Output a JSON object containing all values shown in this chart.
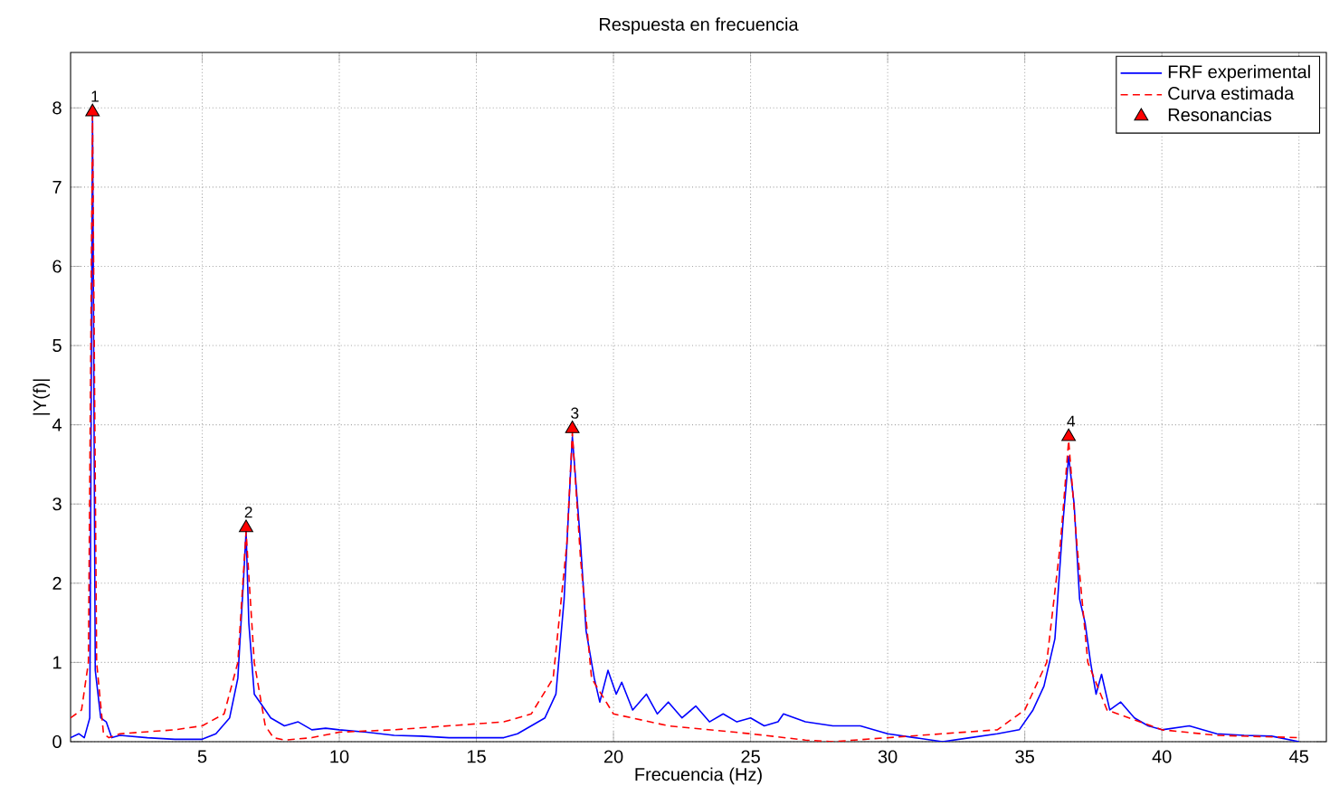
{
  "chart_data": {
    "type": "line",
    "title": "Respuesta en frecuencia",
    "xlabel": "Frecuencia (Hz)",
    "ylabel": "|Y(f)|",
    "xlim": [
      0.2,
      46
    ],
    "ylim": [
      0,
      8.7
    ],
    "xticks": [
      5,
      10,
      15,
      20,
      25,
      30,
      35,
      40,
      45
    ],
    "yticks": [
      0,
      1,
      2,
      3,
      4,
      5,
      6,
      7,
      8
    ],
    "grid": true,
    "legend": "top right",
    "series": [
      {
        "name": "FRF experimental",
        "color": "#0000ff",
        "line_style": "solid",
        "marker": "none",
        "x": [
          0.2,
          0.5,
          0.7,
          0.9,
          1.0,
          1.1,
          1.3,
          1.5,
          1.7,
          2,
          3,
          4,
          5,
          5.5,
          6,
          6.3,
          6.5,
          6.6,
          6.7,
          6.9,
          7.2,
          7.5,
          8,
          8.5,
          9,
          9.5,
          10,
          11,
          12,
          13,
          14,
          15,
          16,
          16.5,
          17,
          17.5,
          17.9,
          18.2,
          18.5,
          18.8,
          19.0,
          19.3,
          19.5,
          19.8,
          20.1,
          20.3,
          20.7,
          21.2,
          21.6,
          22,
          22.5,
          23,
          23.5,
          24,
          24.5,
          25,
          25.5,
          26,
          26.2,
          27,
          28,
          29,
          30,
          31,
          32,
          33,
          34,
          34.8,
          35.3,
          35.7,
          36.1,
          36.4,
          36.6,
          36.8,
          37.0,
          37.2,
          37.4,
          37.6,
          37.8,
          38.1,
          38.5,
          39,
          39.5,
          40,
          41,
          42,
          43,
          44,
          45
        ],
        "values": [
          0.05,
          0.1,
          0.05,
          0.3,
          7.9,
          0.9,
          0.3,
          0.25,
          0.05,
          0.08,
          0.05,
          0.03,
          0.03,
          0.1,
          0.3,
          0.8,
          2.0,
          2.65,
          1.5,
          0.6,
          0.45,
          0.3,
          0.2,
          0.25,
          0.15,
          0.17,
          0.15,
          0.12,
          0.08,
          0.07,
          0.05,
          0.05,
          0.05,
          0.1,
          0.2,
          0.3,
          0.6,
          1.8,
          3.85,
          2.5,
          1.4,
          0.8,
          0.5,
          0.9,
          0.6,
          0.75,
          0.4,
          0.6,
          0.35,
          0.5,
          0.3,
          0.45,
          0.25,
          0.35,
          0.25,
          0.3,
          0.2,
          0.25,
          0.35,
          0.25,
          0.2,
          0.2,
          0.1,
          0.05,
          0.0,
          0.05,
          0.1,
          0.15,
          0.4,
          0.7,
          1.3,
          2.8,
          3.6,
          3.0,
          1.8,
          1.5,
          1.0,
          0.6,
          0.85,
          0.4,
          0.5,
          0.3,
          0.2,
          0.15,
          0.2,
          0.1,
          0.08,
          0.07,
          0.0
        ]
      },
      {
        "name": "Curva estimada",
        "color": "#ff0000",
        "line_style": "dashed",
        "marker": "none",
        "x": [
          0.2,
          0.6,
          0.85,
          1.0,
          1.15,
          1.4,
          1.6,
          2,
          4,
          5,
          5.8,
          6.3,
          6.6,
          6.9,
          7.3,
          7.6,
          8,
          9,
          10,
          12,
          14,
          16,
          17,
          17.8,
          18.3,
          18.5,
          18.8,
          19.2,
          20,
          22,
          25,
          27,
          28,
          30,
          32,
          34,
          35,
          35.8,
          36.3,
          36.6,
          36.9,
          37.3,
          38,
          40,
          42,
          45
        ],
        "values": [
          0.3,
          0.4,
          1.0,
          7.9,
          1.0,
          0.1,
          0.05,
          0.1,
          0.15,
          0.2,
          0.35,
          1.0,
          2.65,
          1.0,
          0.2,
          0.05,
          0.02,
          0.05,
          0.12,
          0.15,
          0.2,
          0.25,
          0.35,
          0.8,
          2.5,
          3.9,
          2.3,
          0.8,
          0.35,
          0.2,
          0.1,
          0.02,
          0.0,
          0.05,
          0.1,
          0.15,
          0.4,
          1.0,
          2.5,
          3.8,
          2.5,
          1.0,
          0.4,
          0.15,
          0.08,
          0.05
        ]
      },
      {
        "name": "Resonancias",
        "type": "scatter",
        "color": "#ff0000",
        "marker": "triangle",
        "x": [
          1.0,
          6.6,
          18.5,
          36.6
        ],
        "values": [
          7.95,
          2.7,
          3.95,
          3.85
        ]
      }
    ],
    "annotations": [
      {
        "text": "1",
        "x": 1.0,
        "y": 7.95
      },
      {
        "text": "2",
        "x": 6.6,
        "y": 2.7
      },
      {
        "text": "3",
        "x": 18.5,
        "y": 3.95
      },
      {
        "text": "4",
        "x": 36.6,
        "y": 3.85
      }
    ]
  }
}
